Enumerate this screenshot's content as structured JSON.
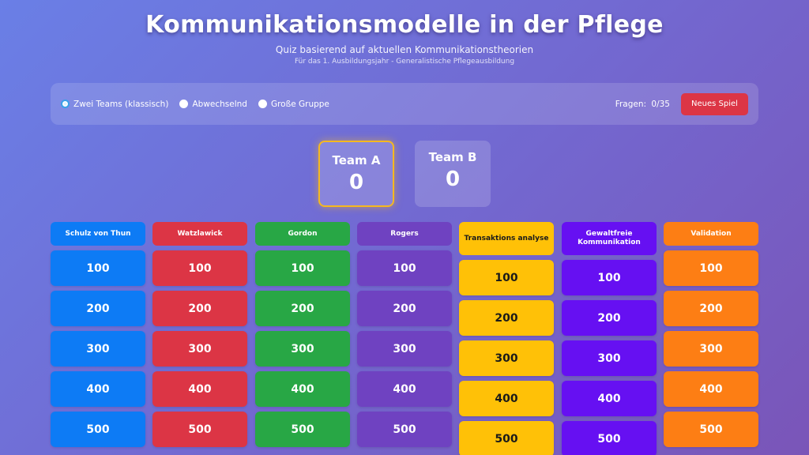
{
  "header": {
    "title": "Kommunikationsmodelle in der Pflege",
    "subtitle": "Quiz basierend auf aktuellen Kommunikationstheorien",
    "subsubtitle": "Für das 1. Ausbildungsjahr - Generalistische Pflegeausbildung"
  },
  "controls": {
    "modes": [
      {
        "label": "Zwei Teams (klassisch)",
        "checked": true
      },
      {
        "label": "Abwechselnd",
        "checked": false
      },
      {
        "label": "Große Gruppe",
        "checked": false
      }
    ],
    "counter_label": "Fragen:",
    "counter_value": "0/35",
    "new_game_label": "Neues Spiel"
  },
  "teams": [
    {
      "name": "Team A",
      "score": "0",
      "active": true
    },
    {
      "name": "Team B",
      "score": "0",
      "active": false
    }
  ],
  "board": {
    "categories": [
      {
        "name": "Schulz von Thun",
        "color": "#0d7bf5",
        "text_color": "#ffffff",
        "values": [
          "100",
          "200",
          "300",
          "400",
          "500"
        ]
      },
      {
        "name": "Watzlawick",
        "color": "#dc3545",
        "text_color": "#ffffff",
        "values": [
          "100",
          "200",
          "300",
          "400",
          "500"
        ]
      },
      {
        "name": "Gordon",
        "color": "#28a745",
        "text_color": "#ffffff",
        "values": [
          "100",
          "200",
          "300",
          "400",
          "500"
        ]
      },
      {
        "name": "Rogers",
        "color": "#6f42c1",
        "text_color": "#ffffff",
        "values": [
          "100",
          "200",
          "300",
          "400",
          "500"
        ]
      },
      {
        "name": "Transaktions analyse",
        "color": "#ffc107",
        "text_color": "#1a1a1a",
        "values": [
          "100",
          "200",
          "300",
          "400",
          "500"
        ]
      },
      {
        "name": "Gewaltfreie Kommunikation",
        "color": "#6610f2",
        "text_color": "#ffffff",
        "values": [
          "100",
          "200",
          "300",
          "400",
          "500"
        ]
      },
      {
        "name": "Validation",
        "color": "#fd7e14",
        "text_color": "#ffffff",
        "values": [
          "100",
          "200",
          "300",
          "400",
          "500"
        ]
      }
    ]
  },
  "icons": {
    "radio": "radio-button-icon"
  }
}
